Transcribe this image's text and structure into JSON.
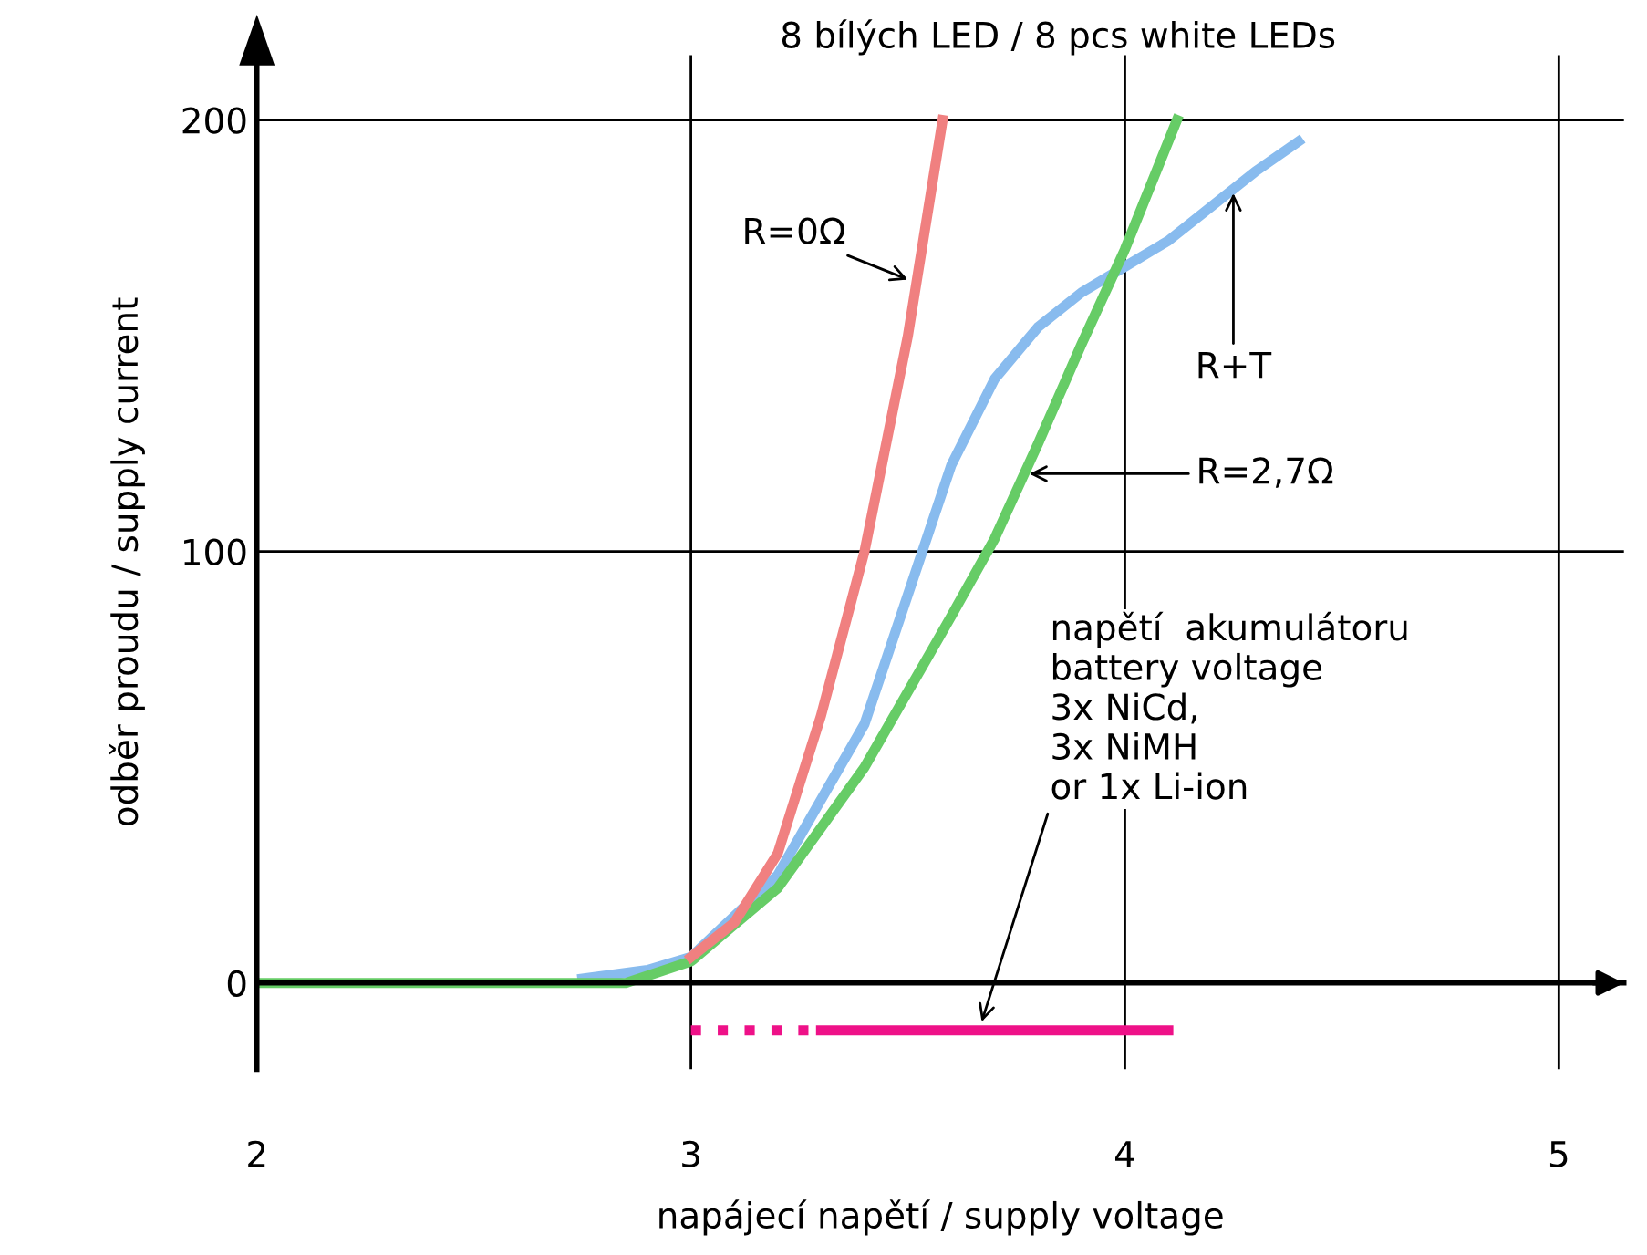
{
  "chart_data": {
    "type": "line",
    "title": "8 bílých LED / 8 pcs white LEDs",
    "xlabel": "napájecí napětí / supply voltage",
    "ylabel": "odběr proudu / supply current",
    "xlim": [
      2,
      5.15
    ],
    "ylim": [
      -20,
      215
    ],
    "xticks": [
      2,
      3,
      4,
      5
    ],
    "yticks": [
      0,
      100,
      200
    ],
    "grid": true,
    "legend": false,
    "marker": "none",
    "series": [
      {
        "color": "#f08080",
        "x": [
          3.0,
          3.1,
          3.2,
          3.3,
          3.4,
          3.5,
          3.58
        ],
        "values": [
          6,
          14,
          30,
          62,
          100,
          150,
          200
        ]
      },
      {
        "color": "#88bbee",
        "x": [
          2.75,
          2.9,
          3.0,
          3.2,
          3.4,
          3.5,
          3.6,
          3.7,
          3.8,
          3.9,
          4.0,
          4.1,
          4.2,
          4.3,
          4.4
        ],
        "values": [
          1,
          3,
          6,
          25,
          60,
          90,
          120,
          140,
          152,
          160,
          166,
          172,
          180,
          188,
          195
        ]
      },
      {
        "color": "#66cc66",
        "x": [
          2,
          2.5,
          2.85,
          3.0,
          3.2,
          3.4,
          3.6,
          3.7,
          3.8,
          3.9,
          4.0,
          4.1,
          4.12
        ],
        "values": [
          0,
          0,
          0,
          5,
          22,
          50,
          85,
          103,
          125,
          148,
          170,
          195,
          200
        ]
      },
      {
        "color": "#ee1188",
        "x": [
          3.0,
          3.3
        ],
        "values": [
          -11,
          -11
        ],
        "line_style": "dotted"
      },
      {
        "color": "#ee1188",
        "x": [
          3.3,
          4.1
        ],
        "values": [
          -11,
          -11
        ],
        "line_style": "solid"
      }
    ],
    "annotations": [
      {
        "text": "R=0Ω",
        "x": 3.5,
        "y": 163
      },
      {
        "text": "R+T",
        "x": 4.25,
        "y": 183
      },
      {
        "text": "R=2,7Ω",
        "x": 3.78,
        "y": 118
      },
      {
        "text": "napětí  akumulátoru\nbattery voltage\n3x NiCd,\n3x NiMH\nor 1x Li-ion",
        "x": 3.67,
        "y": -9
      }
    ]
  }
}
